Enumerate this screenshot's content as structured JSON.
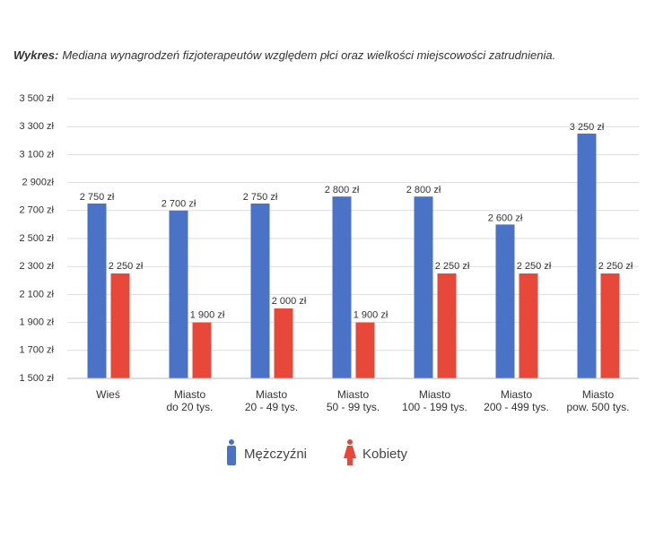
{
  "chart_data": {
    "type": "bar",
    "title": {
      "label": "Wykres:",
      "text": "Mediana wynagrodzeń fizjoterapeutów względem płci oraz wielkości miejscowości zatrudnienia."
    },
    "categories": [
      [
        "Wieś"
      ],
      [
        "Miasto",
        "do 20 tys."
      ],
      [
        "Miasto",
        "20 - 49 tys."
      ],
      [
        "Miasto",
        "50 - 99 tys."
      ],
      [
        "Miasto",
        "100 - 199 tys."
      ],
      [
        "Miasto",
        "200 - 499 tys."
      ],
      [
        "Miasto",
        "pow. 500 tys."
      ]
    ],
    "series": [
      {
        "name": "Mężczyźni",
        "color": "#4a72c6",
        "values": [
          2750,
          2700,
          2750,
          2800,
          2800,
          2600,
          3250
        ],
        "value_labels": [
          "2 750 zł",
          "2 700 zł",
          "2 750 zł",
          "2 800 zł",
          "2 800 zł",
          "2 600 zł",
          "3 250 zł"
        ]
      },
      {
        "name": "Kobiety",
        "color": "#e8483a",
        "values": [
          2250,
          1900,
          2000,
          1900,
          2250,
          2250,
          2250
        ],
        "value_labels": [
          "2 250 zł",
          "1 900 zł",
          "2 000 zł",
          "1 900 zł",
          "2 250 zł",
          "2 250 zł",
          "2 250 zł"
        ]
      }
    ],
    "ylim": [
      1500,
      3500
    ],
    "yticks": [
      {
        "value": 1500,
        "label": "1 500 zł"
      },
      {
        "value": 1700,
        "label": "1 700 zł"
      },
      {
        "value": 1900,
        "label": "1 900 zł"
      },
      {
        "value": 2100,
        "label": "2 100 zł"
      },
      {
        "value": 2300,
        "label": "2 300 zł"
      },
      {
        "value": 2500,
        "label": "2 500 zł"
      },
      {
        "value": 2700,
        "label": "2 700 zł"
      },
      {
        "value": 2900,
        "label": "2 900zł"
      },
      {
        "value": 3100,
        "label": "3 100 zł"
      },
      {
        "value": 3300,
        "label": "3 300 zł"
      },
      {
        "value": 3500,
        "label": "3 500 zł"
      }
    ],
    "grid": true
  }
}
